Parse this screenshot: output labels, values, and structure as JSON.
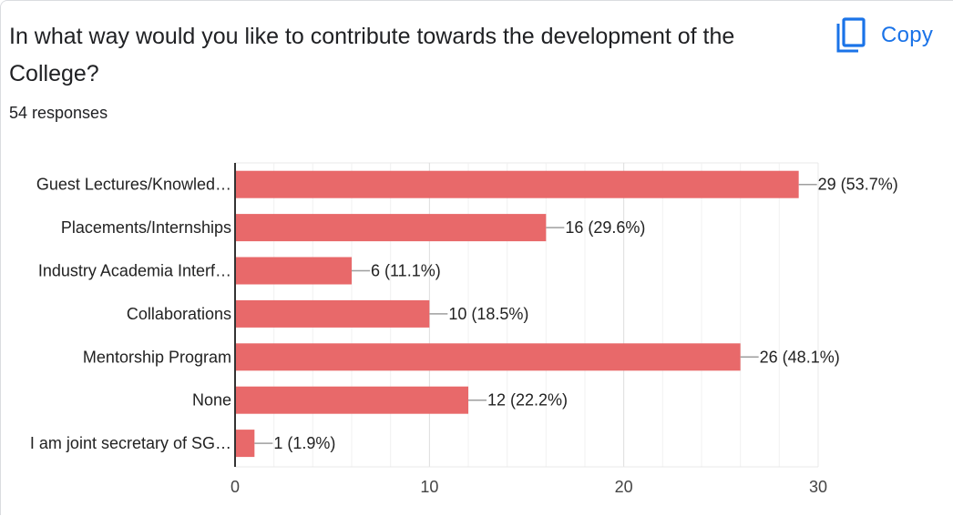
{
  "question": {
    "title": "In what way would you like to contribute towards the development of the College?",
    "response_count": "54 responses"
  },
  "toolbar": {
    "copy_label": "Copy",
    "copy_icon": "copy-icon"
  },
  "colors": {
    "bar": "#e8696a",
    "accent": "#1a73e8",
    "grid": "#e8e8e8",
    "axis": "#333333",
    "connector": "#9e9e9e"
  },
  "chart_data": {
    "type": "bar",
    "orientation": "horizontal",
    "categories": [
      "Guest Lectures/Knowled…",
      "Placements/Internships",
      "Industry Academia Interf…",
      "Collaborations",
      "Mentorship Program",
      "None",
      "I am joint secretary of SG…"
    ],
    "values": [
      29,
      16,
      6,
      10,
      26,
      12,
      1
    ],
    "data_labels": [
      "29 (53.7%)",
      "16 (29.6%)",
      "6 (11.1%)",
      "10 (18.5%)",
      "26 (48.1%)",
      "12 (22.2%)",
      "1 (1.9%)"
    ],
    "xlim": [
      0,
      30
    ],
    "xticks": [
      0,
      10,
      20,
      30
    ],
    "grid": true,
    "legend": "none",
    "title": "",
    "xlabel": "",
    "ylabel": ""
  }
}
